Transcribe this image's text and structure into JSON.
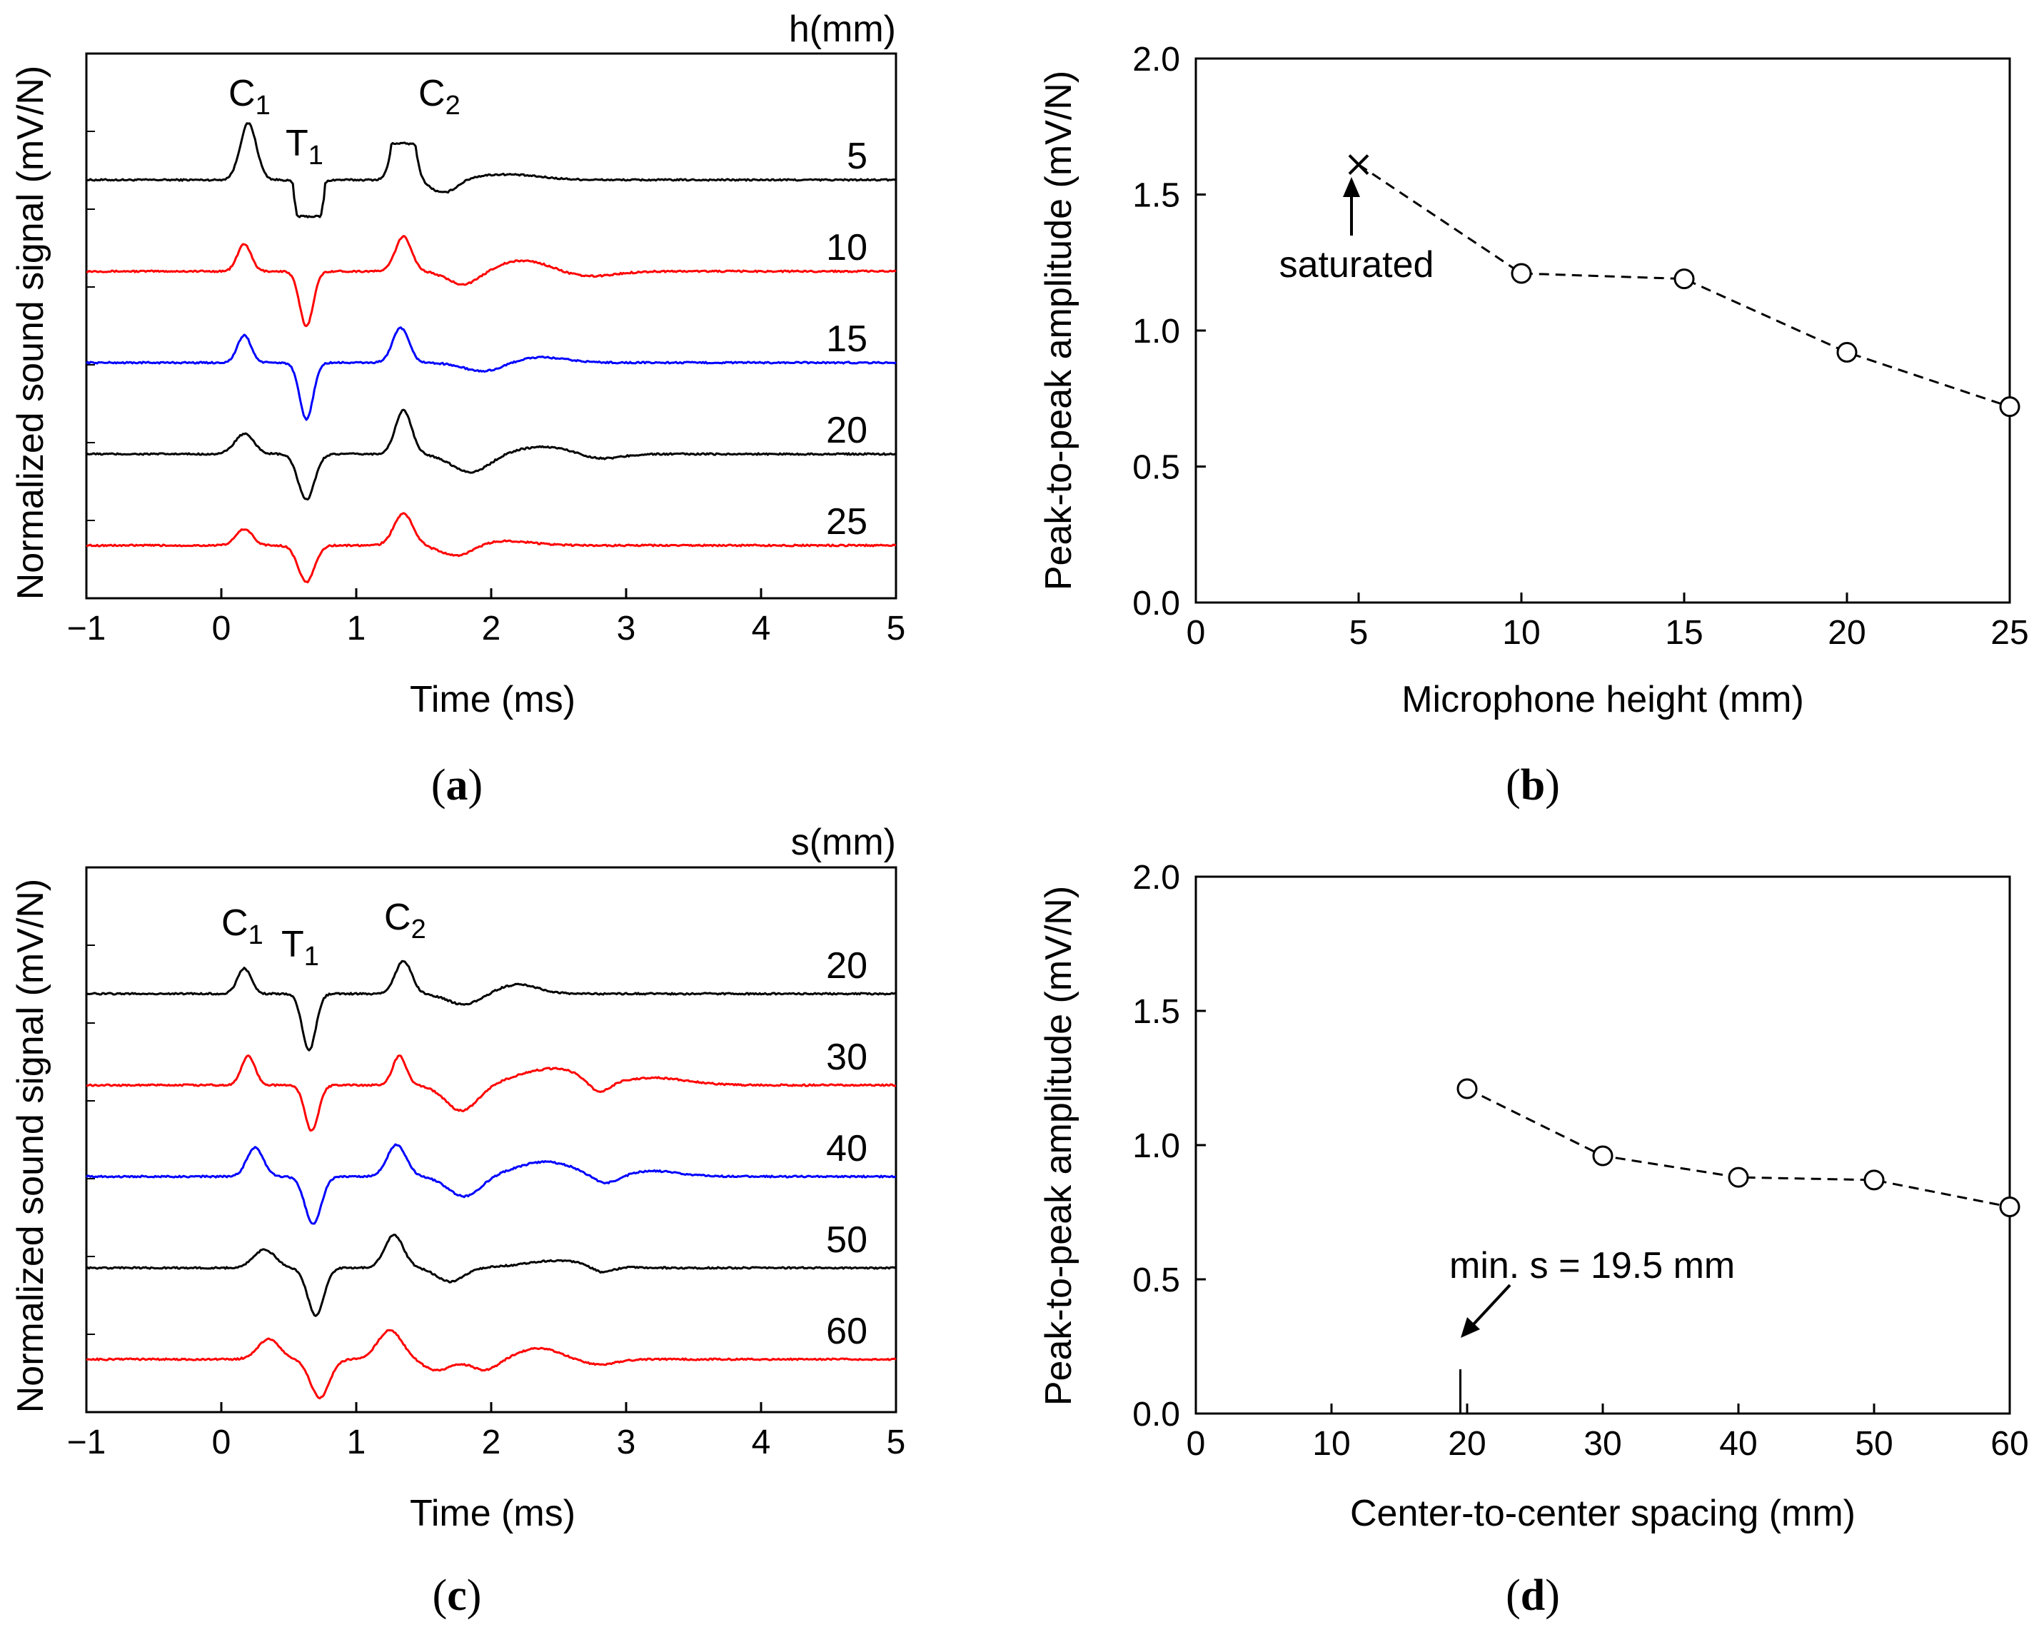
{
  "chart_data": [
    {
      "type": "line",
      "panel": "a",
      "panel_label": "a",
      "title": "",
      "xlabel": "Time (ms)",
      "ylabel": "Normalized sound signal (mV/N)",
      "xlim": [
        -1,
        5
      ],
      "xticks": [
        "−1",
        "0",
        "1",
        "2",
        "3",
        "4",
        "5"
      ],
      "xtick_values": [
        -1,
        0,
        1,
        2,
        3,
        4,
        5
      ],
      "legend_title": "h(mm)",
      "series": [
        {
          "name": "5",
          "color": "#000000",
          "offset": 5.0,
          "saturated": true,
          "c1": {
            "t": 0.2,
            "a": 0.62,
            "w": 0.06
          },
          "t1": {
            "t": 0.65,
            "a": -0.72,
            "w": 0.05
          },
          "c2": {
            "t": 1.35,
            "a": 0.72,
            "w": 0.05
          },
          "tail": [
            [
              1.65,
              -0.15,
              0.1
            ],
            [
              2.1,
              0.06,
              0.25
            ]
          ]
        },
        {
          "name": "10",
          "color": "#ff0000",
          "offset": 4.0,
          "saturated": false,
          "c1": {
            "t": 0.17,
            "a": 0.3,
            "w": 0.05
          },
          "t1": {
            "t": 0.63,
            "a": -0.6,
            "w": 0.05
          },
          "c2": {
            "t": 1.35,
            "a": 0.38,
            "w": 0.06
          },
          "tail": [
            [
              1.8,
              -0.15,
              0.12
            ],
            [
              2.25,
              0.12,
              0.2
            ],
            [
              2.7,
              -0.06,
              0.2
            ]
          ]
        },
        {
          "name": "15",
          "color": "#0000ff",
          "offset": 3.0,
          "saturated": false,
          "c1": {
            "t": 0.17,
            "a": 0.3,
            "w": 0.05
          },
          "t1": {
            "t": 0.63,
            "a": -0.62,
            "w": 0.05
          },
          "c2": {
            "t": 1.33,
            "a": 0.38,
            "w": 0.06
          },
          "tail": [
            [
              1.95,
              -0.1,
              0.15
            ],
            [
              2.35,
              0.06,
              0.2
            ]
          ]
        },
        {
          "name": "20",
          "color": "#000000",
          "offset": 2.0,
          "saturated": false,
          "c1": {
            "t": 0.17,
            "a": 0.22,
            "w": 0.07
          },
          "t1": {
            "t": 0.63,
            "a": -0.5,
            "w": 0.06
          },
          "c2": {
            "t": 1.35,
            "a": 0.48,
            "w": 0.06
          },
          "tail": [
            [
              1.85,
              -0.2,
              0.14
            ],
            [
              2.4,
              0.08,
              0.22
            ],
            [
              2.8,
              -0.06,
              0.15
            ]
          ]
        },
        {
          "name": "25",
          "color": "#ff0000",
          "offset": 1.0,
          "saturated": false,
          "c1": {
            "t": 0.17,
            "a": 0.18,
            "w": 0.06
          },
          "t1": {
            "t": 0.63,
            "a": -0.4,
            "w": 0.06
          },
          "c2": {
            "t": 1.35,
            "a": 0.35,
            "w": 0.07
          },
          "tail": [
            [
              1.75,
              -0.12,
              0.12
            ],
            [
              2.1,
              0.05,
              0.2
            ]
          ]
        }
      ],
      "annotations": [
        {
          "text": "C",
          "sub": "1",
          "t": 0.15
        },
        {
          "text": "T",
          "sub": "1",
          "t": 0.65
        },
        {
          "text": "C",
          "sub": "2",
          "t": 1.45
        }
      ]
    },
    {
      "type": "line",
      "panel": "b",
      "panel_label": "b",
      "title": "",
      "xlabel": "Microphone height (mm)",
      "ylabel": "Peak-to-peak amplitude (mV/N)",
      "xlim": [
        0,
        25
      ],
      "ylim": [
        0,
        2
      ],
      "xticks": [
        "0",
        "5",
        "10",
        "15",
        "20",
        "25"
      ],
      "xtick_values": [
        0,
        5,
        10,
        15,
        20,
        25
      ],
      "yticks": [
        "0.0",
        "0.5",
        "1.0",
        "1.5",
        "2.0"
      ],
      "ytick_values": [
        0,
        0.5,
        1.0,
        1.5,
        2.0
      ],
      "x": [
        5,
        10,
        15,
        20,
        25
      ],
      "values": [
        1.61,
        1.21,
        1.19,
        0.92,
        0.72
      ],
      "marker": [
        "cross",
        "circle",
        "circle",
        "circle",
        "circle"
      ],
      "annotation": "saturated"
    },
    {
      "type": "line",
      "panel": "c",
      "panel_label": "c",
      "title": "",
      "xlabel": "Time (ms)",
      "ylabel": "Normalized sound signal (mV/N)",
      "xlim": [
        -1,
        5
      ],
      "xticks": [
        "−1",
        "0",
        "1",
        "2",
        "3",
        "4",
        "5"
      ],
      "xtick_values": [
        -1,
        0,
        1,
        2,
        3,
        4,
        5
      ],
      "legend_title": "s(mm)",
      "series": [
        {
          "name": "20",
          "color": "#000000",
          "offset": 5.0,
          "saturated": false,
          "c1": {
            "t": 0.17,
            "a": 0.28,
            "w": 0.05
          },
          "t1": {
            "t": 0.65,
            "a": -0.62,
            "w": 0.05
          },
          "c2": {
            "t": 1.35,
            "a": 0.36,
            "w": 0.06
          },
          "tail": [
            [
              1.8,
              -0.12,
              0.12
            ],
            [
              2.2,
              0.1,
              0.15
            ]
          ]
        },
        {
          "name": "30",
          "color": "#ff0000",
          "offset": 4.0,
          "saturated": false,
          "c1": {
            "t": 0.2,
            "a": 0.32,
            "w": 0.05
          },
          "t1": {
            "t": 0.67,
            "a": -0.5,
            "w": 0.05
          },
          "c2": {
            "t": 1.32,
            "a": 0.32,
            "w": 0.05
          },
          "tail": [
            [
              1.78,
              -0.28,
              0.12
            ],
            [
              2.3,
              0.12,
              0.18
            ],
            [
              2.55,
              0.12,
              0.15
            ],
            [
              2.8,
              -0.12,
              0.08
            ],
            [
              3.2,
              0.08,
              0.25
            ]
          ]
        },
        {
          "name": "40",
          "color": "#0000ff",
          "offset": 3.0,
          "saturated": false,
          "c1": {
            "t": 0.25,
            "a": 0.32,
            "w": 0.06
          },
          "t1": {
            "t": 0.68,
            "a": -0.52,
            "w": 0.06
          },
          "c2": {
            "t": 1.3,
            "a": 0.35,
            "w": 0.07
          },
          "tail": [
            [
              1.8,
              -0.22,
              0.12
            ],
            [
              2.4,
              0.16,
              0.22
            ],
            [
              2.85,
              -0.1,
              0.1
            ],
            [
              3.2,
              0.06,
              0.2
            ]
          ]
        },
        {
          "name": "50",
          "color": "#000000",
          "offset": 2.0,
          "saturated": false,
          "c1": {
            "t": 0.32,
            "a": 0.2,
            "w": 0.08
          },
          "t1": {
            "t": 0.7,
            "a": -0.52,
            "w": 0.06
          },
          "c2": {
            "t": 1.28,
            "a": 0.36,
            "w": 0.07
          },
          "tail": [
            [
              1.7,
              -0.15,
              0.1
            ],
            [
              2.5,
              0.08,
              0.25
            ],
            [
              2.82,
              -0.08,
              0.08
            ]
          ]
        },
        {
          "name": "60",
          "color": "#ff0000",
          "offset": 1.0,
          "saturated": false,
          "c1": {
            "t": 0.35,
            "a": 0.22,
            "w": 0.08
          },
          "t1": {
            "t": 0.73,
            "a": -0.42,
            "w": 0.07
          },
          "c2": {
            "t": 1.25,
            "a": 0.32,
            "w": 0.09
          },
          "tail": [
            [
              1.6,
              -0.12,
              0.1
            ],
            [
              1.95,
              -0.12,
              0.1
            ],
            [
              2.35,
              0.12,
              0.15
            ],
            [
              2.8,
              -0.06,
              0.12
            ]
          ]
        }
      ],
      "annotations": [
        {
          "text": "C",
          "sub": "1",
          "t": 0.18
        },
        {
          "text": "T",
          "sub": "1",
          "t": 0.68
        },
        {
          "text": "C",
          "sub": "2",
          "t": 1.42
        }
      ]
    },
    {
      "type": "line",
      "panel": "d",
      "panel_label": "d",
      "title": "",
      "xlabel": "Center-to-center spacing (mm)",
      "ylabel": "Peak-to-peak amplitude (mV/N)",
      "xlim": [
        0,
        60
      ],
      "ylim": [
        0,
        2
      ],
      "xticks": [
        "0",
        "10",
        "20",
        "30",
        "40",
        "50",
        "60"
      ],
      "xtick_values": [
        0,
        10,
        20,
        30,
        40,
        50,
        60
      ],
      "yticks": [
        "0.0",
        "0.5",
        "1.0",
        "1.5",
        "2.0"
      ],
      "ytick_values": [
        0,
        0.5,
        1.0,
        1.5,
        2.0
      ],
      "x": [
        20,
        30,
        40,
        50,
        60
      ],
      "values": [
        1.21,
        0.96,
        0.88,
        0.87,
        0.77
      ],
      "marker": [
        "circle",
        "circle",
        "circle",
        "circle",
        "circle"
      ],
      "annotation": "min. s = 19.5 mm",
      "min_s": 19.5
    }
  ]
}
